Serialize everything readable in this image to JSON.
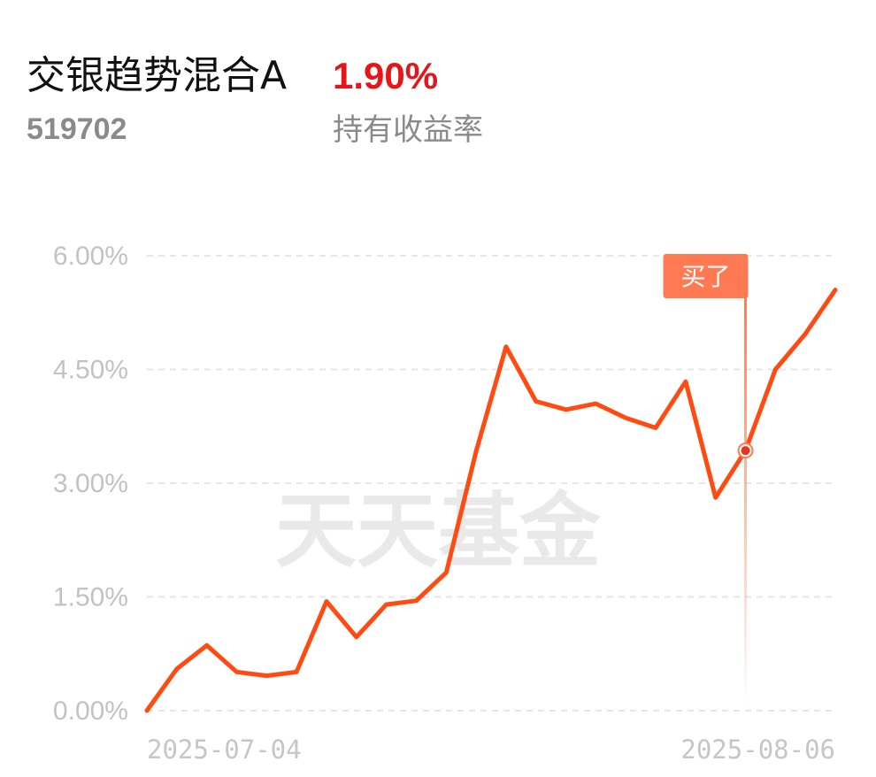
{
  "fund": {
    "name": "交银趋势混合A",
    "code": "519702",
    "return_value": "1.90%",
    "return_label": "持有收益率"
  },
  "watermark": "天天基金",
  "colors": {
    "line": "#ff4a12",
    "return_red": "#e8141a",
    "buy_marker": "#ff7a52",
    "grid": "#e6e6e6"
  },
  "chart_data": {
    "type": "line",
    "title": "",
    "xlabel": "",
    "ylabel": "",
    "y_tick_labels": [
      "6.00%",
      "4.50%",
      "3.00%",
      "1.50%",
      "0.00%"
    ],
    "y_ticks": [
      6.0,
      4.5,
      3.0,
      1.5,
      0.0
    ],
    "ylim": [
      0,
      6.0
    ],
    "x_tick_labels": [
      "2025-07-04",
      "2025-08-06"
    ],
    "grid": "horizontal dashed",
    "series": [
      {
        "values": [
          0.0,
          0.55,
          0.86,
          0.51,
          0.46,
          0.51,
          1.44,
          0.97,
          1.4,
          1.45,
          1.82,
          3.42,
          4.8,
          4.08,
          3.97,
          4.05,
          3.86,
          3.73,
          4.34,
          2.81,
          3.43,
          4.5,
          4.97,
          5.55
        ]
      }
    ],
    "annotations": [
      {
        "text": "买了",
        "index": 20,
        "value": 3.43
      }
    ]
  }
}
